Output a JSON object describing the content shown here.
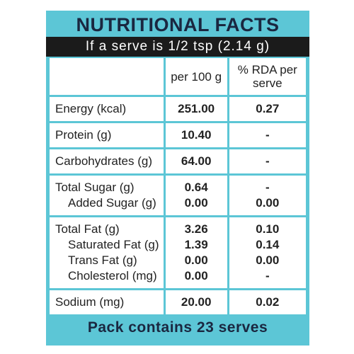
{
  "header": {
    "title": "NUTRITIONAL FACTS",
    "serving": "If a serve is 1/2 tsp (2.14 g)"
  },
  "table": {
    "columns": [
      "per 100 g",
      "% RDA per serve"
    ],
    "groups": [
      [
        [
          "Energy (kcal)",
          "251.00",
          "0.27"
        ]
      ],
      [
        [
          "Protein (g)",
          "10.40",
          "-"
        ]
      ],
      [
        [
          "Carbohydrates (g)",
          "64.00",
          "-"
        ]
      ],
      [
        [
          "Total Sugar (g)",
          "0.64",
          "-"
        ],
        [
          "Added Sugar (g)",
          "0.00",
          "0.00"
        ]
      ],
      [
        [
          "Total Fat (g)",
          "3.26",
          "0.10"
        ],
        [
          "Saturated Fat (g)",
          "1.39",
          "0.14"
        ],
        [
          "Trans Fat (g)",
          "0.00",
          "0.00"
        ],
        [
          "Cholesterol (mg)",
          "0.00",
          "-"
        ]
      ],
      [
        [
          "Sodium (mg)",
          "20.00",
          "0.02"
        ]
      ]
    ]
  },
  "footer": "Pack contains 23 serves"
}
